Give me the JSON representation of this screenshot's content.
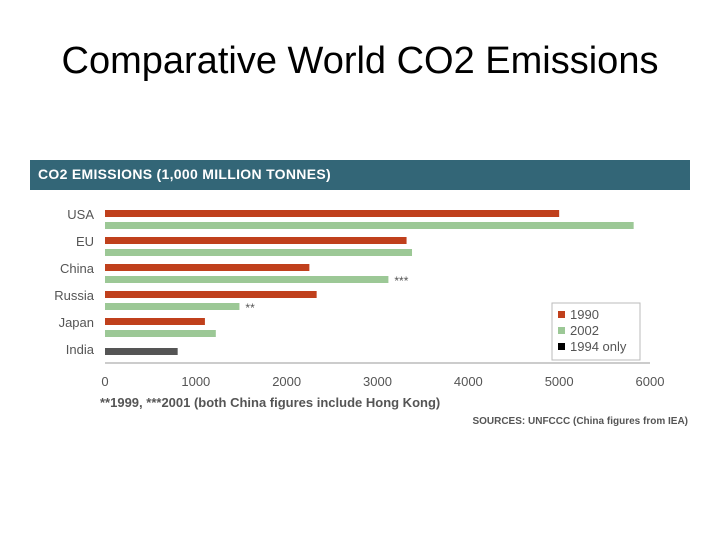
{
  "slide": {
    "title": "Comparative World CO2 Emissions"
  },
  "chart_data": {
    "type": "bar",
    "orientation": "horizontal",
    "title": "CO2 EMISSIONS (1,000 MILLION TONNES)",
    "categories": [
      "USA",
      "EU",
      "China",
      "Russia",
      "Japan",
      "India"
    ],
    "series": [
      {
        "name": "1990",
        "color": "#c0401c",
        "values": [
          5000,
          3320,
          2250,
          2330,
          1100,
          null
        ]
      },
      {
        "name": "2002",
        "color": "#9cc896",
        "values": [
          5820,
          3380,
          3120,
          1480,
          1220,
          null
        ]
      },
      {
        "name": "1994 only",
        "color": "#555555",
        "values": [
          null,
          null,
          null,
          null,
          null,
          800
        ]
      }
    ],
    "annotations": [
      {
        "category": "China",
        "series": "2002",
        "text": "***"
      },
      {
        "category": "Russia",
        "series": "2002",
        "text": "**"
      }
    ],
    "xlim": [
      0,
      6000
    ],
    "xticks": [
      "0",
      "1000",
      "2000",
      "3000",
      "4000",
      "5000",
      "6000"
    ],
    "grid": false,
    "legend_position": "bottom-right",
    "footnote": "**1999, ***2001 (both China figures include Hong Kong)",
    "source": "SOURCES: UNFCCC (China figures from IEA)"
  }
}
